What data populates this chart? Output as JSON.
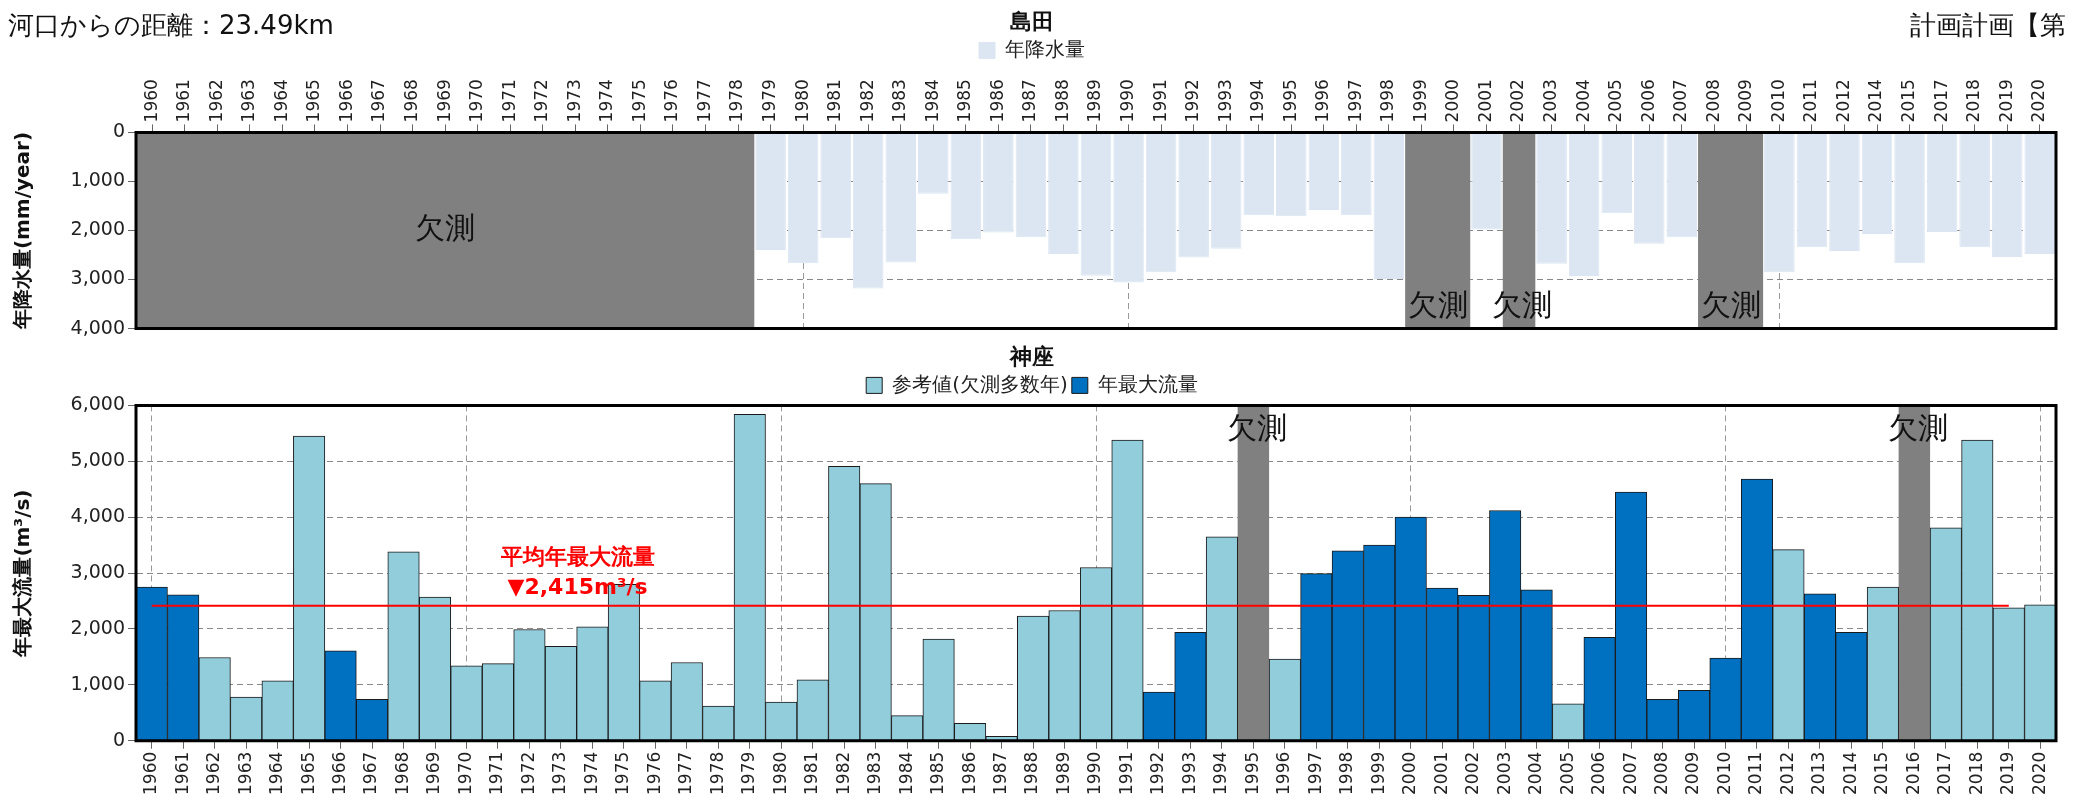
{
  "chart_data": [
    {
      "type": "bar",
      "title": "島田",
      "ylabel": "年降水量(mm/year)",
      "annotations": [
        "河口からの距離：23.49km",
        "計画計画【第"
      ],
      "categories": [
        "1960",
        "1961",
        "1962",
        "1963",
        "1964",
        "1965",
        "1966",
        "1967",
        "1968",
        "1969",
        "1970",
        "1971",
        "1972",
        "1973",
        "1974",
        "1975",
        "1976",
        "1977",
        "1978",
        "1979",
        "1980",
        "1981",
        "1982",
        "1983",
        "1984",
        "1985",
        "1986",
        "1987",
        "1988",
        "1989",
        "1990",
        "1991",
        "1992",
        "1993",
        "1994",
        "1995",
        "1996",
        "1997",
        "1998",
        "1999",
        "2000",
        "2001",
        "2002",
        "2003",
        "2004",
        "2005",
        "2006",
        "2007",
        "2008",
        "2009",
        "2010",
        "2011",
        "2012",
        "2014",
        "2015",
        "2017",
        "2018",
        "2019",
        "2020"
      ],
      "series": [
        {
          "name": "年降水量",
          "color": "#dce6f2",
          "values": [
            null,
            null,
            null,
            null,
            null,
            null,
            null,
            null,
            null,
            null,
            null,
            null,
            null,
            null,
            null,
            null,
            null,
            null,
            null,
            2400,
            2670,
            2160,
            3180,
            2650,
            1250,
            2180,
            2040,
            2140,
            2480,
            2920,
            3060,
            2850,
            2550,
            2370,
            1690,
            1710,
            1580,
            1690,
            2990,
            null,
            null,
            1980,
            null,
            2680,
            2930,
            1650,
            2270,
            2140,
            null,
            null,
            2850,
            2340,
            2420,
            2070,
            2670,
            2030,
            2340,
            2540,
            2480
          ]
        }
      ],
      "ylim": [
        4000,
        0
      ],
      "yticks": [
        {
          "value": 0,
          "label": "0"
        },
        {
          "value": 1000,
          "label": "1,000"
        },
        {
          "value": 2000,
          "label": "2,000"
        },
        {
          "value": 3000,
          "label": "3,000"
        },
        {
          "value": 4000,
          "label": "4,000"
        }
      ],
      "bands": [
        {
          "axis": "x",
          "from": "1960",
          "to": "1978",
          "label": "欠測",
          "color": "#808080"
        },
        {
          "axis": "x",
          "from": "1999",
          "to": "2000",
          "label": "欠測",
          "color": "#808080"
        },
        {
          "axis": "x",
          "from": "2002",
          "to": "2002",
          "label": "欠測",
          "color": "#808080"
        },
        {
          "axis": "x",
          "from": "2008",
          "to": "2009",
          "label": "欠測",
          "color": "#808080"
        }
      ],
      "grid": true,
      "legend": "top"
    },
    {
      "type": "bar",
      "title": "神座",
      "ylabel": "年最大流量(m³/s)",
      "categories": [
        "1960",
        "1961",
        "1962",
        "1963",
        "1964",
        "1965",
        "1966",
        "1967",
        "1968",
        "1969",
        "1970",
        "1971",
        "1972",
        "1973",
        "1974",
        "1975",
        "1976",
        "1977",
        "1978",
        "1979",
        "1980",
        "1981",
        "1982",
        "1983",
        "1984",
        "1985",
        "1986",
        "1987",
        "1988",
        "1989",
        "1990",
        "1991",
        "1992",
        "1993",
        "1994",
        "1995",
        "1996",
        "1997",
        "1998",
        "1999",
        "2000",
        "2001",
        "2002",
        "2003",
        "2004",
        "2005",
        "2006",
        "2007",
        "2008",
        "2009",
        "2010",
        "2011",
        "2012",
        "2013",
        "2014",
        "2015",
        "2016",
        "2017",
        "2018",
        "2019",
        "2020"
      ],
      "series": [
        {
          "name": "参考値(欠測多数年)",
          "color": "#92cddc",
          "values": [
            null,
            null,
            1490,
            780,
            1070,
            5450,
            null,
            null,
            3380,
            2570,
            1340,
            1380,
            1990,
            1690,
            2040,
            2800,
            1070,
            1400,
            620,
            5840,
            690,
            1090,
            4910,
            4600,
            450,
            1820,
            310,
            80,
            2230,
            2330,
            3100,
            5380,
            null,
            null,
            3650,
            null,
            1460,
            null,
            null,
            null,
            null,
            null,
            null,
            null,
            null,
            660,
            null,
            null,
            null,
            null,
            null,
            null,
            3420,
            null,
            null,
            2750,
            null,
            3810,
            5380,
            2380,
            2430
          ]
        },
        {
          "name": "年最大流量",
          "color": "#0070c0",
          "values": [
            2750,
            2610,
            null,
            null,
            null,
            null,
            1610,
            740,
            null,
            null,
            null,
            null,
            null,
            null,
            null,
            null,
            null,
            null,
            null,
            null,
            null,
            null,
            null,
            null,
            null,
            null,
            null,
            null,
            null,
            null,
            null,
            null,
            870,
            1940,
            null,
            null,
            null,
            2990,
            3400,
            3500,
            4000,
            2730,
            2600,
            4120,
            2700,
            null,
            1850,
            4450,
            740,
            900,
            1480,
            4680,
            null,
            2630,
            1940,
            null,
            null,
            null,
            null,
            null,
            null
          ]
        }
      ],
      "stacked": true,
      "ylim": [
        0,
        6000
      ],
      "yticks": [
        {
          "value": 0,
          "label": "0"
        },
        {
          "value": 1000,
          "label": "1,000"
        },
        {
          "value": 2000,
          "label": "2,000"
        },
        {
          "value": 3000,
          "label": "3,000"
        },
        {
          "value": 4000,
          "label": "4,000"
        },
        {
          "value": 5000,
          "label": "5,000"
        },
        {
          "value": 6000,
          "label": "6,000"
        }
      ],
      "bands": [
        {
          "axis": "x",
          "from": "1995",
          "to": "1995",
          "label": "欠測",
          "color": "#808080"
        },
        {
          "axis": "x",
          "from": "2016",
          "to": "2016",
          "label": "欠測",
          "color": "#808080"
        }
      ],
      "ref_lines": [
        {
          "axis": "y",
          "value": 2415,
          "label": "平均年最大流量\n▼2,415m³/s",
          "color": "#ff0000"
        }
      ],
      "grid": true,
      "legend": "top"
    }
  ]
}
